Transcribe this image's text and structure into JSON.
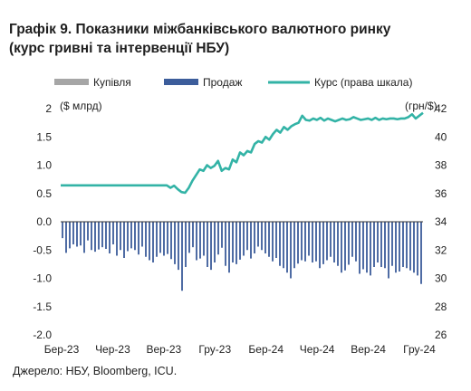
{
  "title_line1": "Графік 9. Показники міжбанківського валютного ринку",
  "title_line2": "(курс гривні та інтервенції НБУ)",
  "source": "Джерело: НБУ, Bloomberg, ICU.",
  "chart_data": {
    "type": "bar+line",
    "legend": [
      "Купівля",
      "Продаж",
      "Курс (права шкала)"
    ],
    "ylabel": "($ млрд)",
    "y2label": "(грн/$)",
    "ylim": [
      -2.0,
      2.0
    ],
    "y2lim": [
      26,
      42
    ],
    "yticks": [
      "2",
      "1.5",
      "1.0",
      "0.5",
      "0.0",
      "-0.5",
      "-1.0",
      "-1.5",
      "-2.0"
    ],
    "y2ticks": [
      "42",
      "40",
      "38",
      "36",
      "34",
      "32",
      "30",
      "28",
      "26"
    ],
    "xticks": [
      "Бер-23",
      "Чер-23",
      "Вер-23",
      "Гру-23",
      "Бер-24",
      "Чер-24",
      "Вер-24",
      "Гру-24"
    ],
    "colors": {
      "purchase": "#a6a6a6",
      "sale": "#3c5d9b",
      "rate": "#33b3a6"
    },
    "sale_weekly": [
      -0.29,
      -0.55,
      -0.47,
      -0.4,
      -0.44,
      -0.42,
      -0.55,
      -0.33,
      -0.5,
      -0.53,
      -0.49,
      -0.45,
      -0.48,
      -0.56,
      -0.4,
      -0.6,
      -0.5,
      -0.64,
      -0.52,
      -0.47,
      -0.5,
      -0.58,
      -0.44,
      -0.62,
      -0.68,
      -0.72,
      -0.62,
      -0.55,
      -0.6,
      -0.57,
      -0.66,
      -0.75,
      -0.85,
      -1.22,
      -0.8,
      -0.55,
      -0.45,
      -0.68,
      -0.65,
      -0.6,
      -0.8,
      -0.85,
      -0.72,
      -0.58,
      -0.46,
      -0.78,
      -0.9,
      -0.72,
      -0.75,
      -0.67,
      -0.6,
      -0.5,
      -0.65,
      -0.56,
      -0.44,
      -0.5,
      -0.56,
      -0.62,
      -0.7,
      -0.64,
      -0.78,
      -0.82,
      -0.9,
      -1.0,
      -0.82,
      -0.74,
      -0.68,
      -0.7,
      -0.6,
      -0.72,
      -0.7,
      -0.82,
      -0.75,
      -0.68,
      -0.62,
      -0.72,
      -0.78,
      -0.9,
      -0.86,
      -0.76,
      -0.62,
      -0.7,
      -0.92,
      -0.84,
      -0.9,
      -0.95,
      -0.8,
      -0.72,
      -0.8,
      -0.82,
      -1.0,
      -0.78,
      -0.9,
      -0.88,
      -0.8,
      -0.82,
      -0.86,
      -0.9,
      -0.95,
      -1.1
    ],
    "purchase_weekly": [],
    "rate_weekly": [
      36.57,
      36.57,
      36.57,
      36.57,
      36.57,
      36.57,
      36.57,
      36.57,
      36.57,
      36.57,
      36.57,
      36.57,
      36.57,
      36.57,
      36.57,
      36.57,
      36.57,
      36.57,
      36.57,
      36.57,
      36.57,
      36.57,
      36.57,
      36.57,
      36.57,
      36.57,
      36.57,
      36.57,
      36.57,
      36.57,
      36.4,
      36.55,
      36.3,
      36.1,
      36.05,
      36.4,
      36.9,
      37.3,
      37.7,
      37.6,
      38.0,
      37.8,
      37.95,
      38.3,
      37.6,
      37.8,
      37.7,
      38.4,
      38.2,
      38.9,
      38.7,
      39.0,
      38.9,
      39.5,
      39.7,
      39.6,
      40.0,
      39.8,
      40.2,
      40.5,
      40.3,
      40.7,
      40.5,
      40.75,
      40.9,
      41.0,
      41.5,
      41.2,
      41.15,
      41.3,
      41.2,
      41.35,
      41.15,
      41.3,
      41.2,
      41.1,
      41.2,
      41.3,
      41.2,
      41.25,
      41.4,
      41.3,
      41.2,
      41.25,
      41.3,
      41.2,
      41.35,
      41.2,
      41.3,
      41.25,
      41.3,
      41.3,
      41.25,
      41.3,
      41.3,
      41.4,
      41.6,
      41.3,
      41.5,
      41.7
    ]
  }
}
